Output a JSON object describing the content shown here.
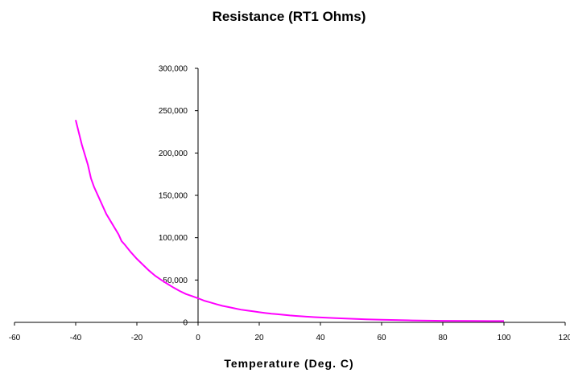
{
  "chart_data": {
    "type": "line",
    "title": "Resistance (RT1 Ohms)",
    "xlabel": "Temperature (Deg. C)",
    "ylabel": "",
    "xlim": [
      -60,
      120
    ],
    "ylim": [
      0,
      300000
    ],
    "x_ticks": [
      -60,
      -40,
      -20,
      0,
      20,
      40,
      60,
      80,
      100,
      120
    ],
    "x_tick_labels": [
      "-60",
      "-40",
      "-20",
      "0",
      "20",
      "40",
      "60",
      "80",
      "100",
      "120"
    ],
    "y_ticks": [
      0,
      50000,
      100000,
      150000,
      200000,
      250000,
      300000
    ],
    "y_tick_labels": [
      "0",
      "50,000",
      "100,000",
      "150,000",
      "200,000",
      "250,000",
      "300,000"
    ],
    "grid": false,
    "legend": "none",
    "colors": {
      "series": "#ff00ff",
      "axis": "#000000"
    },
    "series": [
      {
        "x": [
          -40,
          -38,
          -36,
          -35,
          -34,
          -32,
          -30,
          -28,
          -26,
          -25,
          -24,
          -22,
          -20,
          -18,
          -16,
          -14,
          -12,
          -10,
          -8,
          -6,
          -4,
          -2,
          0,
          2,
          4,
          6,
          8,
          10,
          12,
          14,
          16,
          18,
          20,
          22,
          24,
          26,
          28,
          30,
          32,
          34,
          36,
          38,
          40,
          45,
          50,
          55,
          60,
          70,
          80,
          90,
          95,
          100
        ],
        "y": [
          239000,
          210000,
          186000,
          170000,
          160000,
          144000,
          128000,
          116000,
          104000,
          96000,
          92000,
          83000,
          75000,
          68000,
          61000,
          55000,
          50000,
          45500,
          41000,
          37000,
          33500,
          31000,
          28500,
          25500,
          23500,
          21500,
          19500,
          18000,
          16500,
          15000,
          14000,
          13000,
          12000,
          11000,
          10200,
          9600,
          8900,
          8200,
          7600,
          7100,
          6600,
          6200,
          5800,
          5000,
          4300,
          3600,
          3000,
          2300,
          1800,
          1600,
          1500,
          1500
        ]
      }
    ]
  }
}
